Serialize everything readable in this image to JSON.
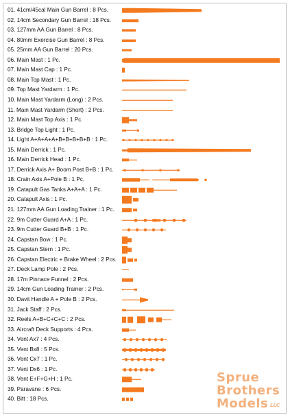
{
  "accent_color": "#f47a20",
  "parts": [
    {
      "label": "01. 41cm/45cal Main Gun Barrel : 8 Pcs.",
      "shape": "gun-barrel-long"
    },
    {
      "label": "02. 14cm Secondary Gun Barrel : 18 Pcs.",
      "shape": "bar-medium"
    },
    {
      "label": "03. 127mm AA Gun Barrel : 8 Pcs.",
      "shape": "bar-short"
    },
    {
      "label": "04. 80mm Exercise Gun Barrel : 8 Pcs.",
      "shape": "bar-short"
    },
    {
      "label": "05. 25mm AA Gun Barrel : 20 Pcs.",
      "shape": "bar-tiny"
    },
    {
      "label": "06. Main Mast : 1 Pc.",
      "shape": "mast-full"
    },
    {
      "label": "07. Main Mast Cap : 1 Pc.",
      "shape": "cap"
    },
    {
      "label": "08. Main Top Mast : 1 Pc.",
      "shape": "taper-long"
    },
    {
      "label": "09. Top Mast Yardarm : 1 Pc.",
      "shape": "thin-line-long"
    },
    {
      "label": "10. Main Mast Yardarm (Long) : 2 Pcs.",
      "shape": "thin-line-mid"
    },
    {
      "label": "11. Main Mast Yardarm (Short) : 2 Pcs.",
      "shape": "thin-line-mid2"
    },
    {
      "label": "12. Main Mast Top Axis : 1 Pc.",
      "shape": "axis-block"
    },
    {
      "label": "13. Bridge Top Light : 1 Pc.",
      "shape": "light-short"
    },
    {
      "label": "14. Light A+A+A+A+B+B+B+B+B : 1 Pc.",
      "shape": "dotted-line"
    },
    {
      "label": "15. Main Derrick : 1 Pc.",
      "shape": "derrick"
    },
    {
      "label": "16. Main Derrick Head : 1 Pc.",
      "shape": "derrick-head"
    },
    {
      "label": "17. Derrick Axis A+ Boom Post B+B : 1 Pc.",
      "shape": "axis-line"
    },
    {
      "label": "18. Crain Axis A+Pole B : 1 Pc.",
      "shape": "crane-axis"
    },
    {
      "label": "19. Catapult Gas Tanks A+A+A : 1 Pc.",
      "shape": "gas-tanks"
    },
    {
      "label": "20. Catapult Axis : 1 Pc.",
      "shape": "catapult-axis"
    },
    {
      "label": "21. 127mm AA Gun Loading Trainer : 1 Pc.",
      "shape": "trainer"
    },
    {
      "label": "22. 9m Cutter Guard A+A : 1 Pc.",
      "shape": "cutter-a"
    },
    {
      "label": "23. 9m Cutter Guard B+B : 1 Pc.",
      "shape": "cutter-b"
    },
    {
      "label": "24. Capstan Bow : 1 Pc.",
      "shape": "capstan"
    },
    {
      "label": "25. Capstan Stern : 1 Pc.",
      "shape": "capstan"
    },
    {
      "label": "26. Capstan Electric + Brake Wheel : 2 Pcs.",
      "shape": "capstan-wheel"
    },
    {
      "label": "27. Deck Lamp Pole : 2 Pcs.",
      "shape": "lamp-pole"
    },
    {
      "label": "28. 17m Pinnace Funnel : 2 Pcs.",
      "shape": "funnel"
    },
    {
      "label": "29. 14cm Gun Loading Trainer : 2 Pcs.",
      "shape": "gun-trainer"
    },
    {
      "label": "30. Davit Handle A + Pole B : 2 Pcs.",
      "shape": "davit"
    },
    {
      "label": "31. Jack Staff : 2 Pcs.",
      "shape": "jack-staff"
    },
    {
      "label": "32. Reels A+B+C+C+C : 2 Pcs.",
      "shape": "reels"
    },
    {
      "label": "33. Aircraft Deck Supports : 4 Pcs.",
      "shape": "supports"
    },
    {
      "label": "34. Vent Ax7 : 4 Pcs.",
      "shape": "vent-a"
    },
    {
      "label": "35. Vent Bx8 : 5 Pcs.",
      "shape": "vent-b"
    },
    {
      "label": "36. Vent Cx7 : 1 Pc.",
      "shape": "vent-c"
    },
    {
      "label": "37. Vent Dx6 : 1 Pc.",
      "shape": "vent-d"
    },
    {
      "label": "38. Vent E+F+G+H : 1 Pc.",
      "shape": "vent-e"
    },
    {
      "label": "39. Paravane : 6 Pcs.",
      "shape": "paravane"
    },
    {
      "label": "40. Bitt : 18 Pcs.",
      "shape": "bitt"
    }
  ],
  "watermark": {
    "line1": "Sprue",
    "line2": "Brothers",
    "line3": "Models",
    "suffix": "LLC"
  }
}
